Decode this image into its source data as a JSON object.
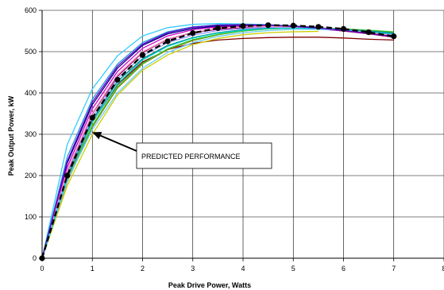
{
  "chart_data": {
    "type": "line",
    "xlabel": "Peak Drive Power, Watts",
    "ylabel": "Peak Output Power, kW",
    "xlim": [
      0,
      8
    ],
    "ylim": [
      0,
      600
    ],
    "xticks": [
      0,
      1,
      2,
      3,
      4,
      5,
      6,
      7,
      8
    ],
    "yticks": [
      0,
      100,
      200,
      300,
      400,
      500,
      600
    ],
    "grid": true,
    "legend": "none",
    "annotation": {
      "text": "PREDICTED PERFORMANCE",
      "points_to": [
        1,
        305
      ]
    },
    "predicted": {
      "color": "#000000",
      "style": "dashed-with-markers",
      "x": [
        0,
        0.5,
        1,
        1.5,
        2,
        2.5,
        3,
        3.5,
        4,
        4.5,
        5,
        5.5,
        6,
        6.5,
        7
      ],
      "y": [
        0,
        200,
        340,
        432,
        492,
        525,
        545,
        557,
        562,
        564,
        563,
        560,
        555,
        547,
        537
      ]
    },
    "series": [
      {
        "color": "#33ccff",
        "x": [
          0,
          0.5,
          1,
          1.5,
          2,
          2.5,
          3,
          3.5,
          4,
          4.5,
          5,
          5.5,
          6,
          6.5,
          7
        ],
        "y": [
          0,
          275,
          410,
          490,
          538,
          558,
          566,
          568,
          567,
          565,
          561,
          557,
          552,
          546,
          540
        ]
      },
      {
        "color": "#1f9dd9",
        "x": [
          0,
          0.5,
          1,
          1.5,
          2,
          2.5,
          3,
          3.5,
          4,
          4.5,
          5,
          5.5,
          6,
          6.5,
          7
        ],
        "y": [
          0,
          245,
          385,
          470,
          522,
          548,
          560,
          565,
          566,
          565,
          562,
          558,
          553,
          546,
          540
        ]
      },
      {
        "color": "#000080",
        "x": [
          0,
          0.5,
          1,
          1.5,
          2,
          2.5,
          3,
          3.5,
          4,
          4.5,
          5,
          5.5,
          6,
          6.5,
          7
        ],
        "y": [
          0,
          230,
          372,
          460,
          515,
          543,
          556,
          562,
          564,
          564,
          562,
          558,
          552,
          545,
          538
        ]
      },
      {
        "color": "#cc00cc",
        "x": [
          0,
          0.5,
          1,
          1.5,
          2,
          2.5,
          3,
          3.5,
          4,
          4.5,
          5,
          5.5,
          6,
          6.5,
          7
        ],
        "y": [
          0,
          220,
          362,
          452,
          508,
          538,
          553,
          560,
          562,
          562,
          560,
          556,
          550,
          544,
          537
        ]
      },
      {
        "color": "#990066",
        "x": [
          0,
          0.5,
          1,
          1.5,
          2,
          2.5,
          3,
          3.5,
          4,
          4.5,
          5,
          5.5,
          6,
          6.5,
          7
        ],
        "y": [
          0,
          210,
          350,
          440,
          498,
          530,
          546,
          554,
          558,
          559,
          558,
          555,
          550,
          543,
          535
        ]
      },
      {
        "color": "#800000",
        "x": [
          0,
          0.5,
          1,
          1.5,
          2,
          2.5,
          3,
          3.5,
          4,
          4.5,
          5,
          5.5,
          6,
          6.5,
          7
        ],
        "y": [
          0,
          195,
          330,
          420,
          475,
          505,
          520,
          528,
          532,
          534,
          535,
          535,
          533,
          530,
          528
        ]
      },
      {
        "color": "#808000",
        "x": [
          0,
          0.5,
          1,
          1.5,
          2,
          2.5,
          3,
          3.5,
          4,
          4.5,
          5,
          5.5,
          6,
          6.5,
          7
        ],
        "y": [
          0,
          185,
          318,
          412,
          470,
          505,
          527,
          541,
          550,
          555,
          557,
          557,
          555,
          551,
          546
        ]
      },
      {
        "color": "#cccc00",
        "x": [
          0,
          0.5,
          1,
          1.5,
          2,
          2.5,
          3,
          3.5,
          4,
          4.5,
          5,
          5.5
        ],
        "y": [
          0,
          175,
          300,
          395,
          455,
          492,
          517,
          532,
          541,
          546,
          548,
          549
        ]
      },
      {
        "color": "#33cc33",
        "x": [
          0,
          0.5,
          1,
          1.5,
          2,
          2.5,
          3,
          3.5,
          4,
          4.5,
          5,
          5.5,
          6,
          6.5,
          7
        ],
        "y": [
          0,
          190,
          322,
          415,
          472,
          507,
          529,
          542,
          550,
          555,
          557,
          557,
          555,
          552,
          548
        ]
      },
      {
        "color": "#008080",
        "x": [
          0,
          0.5,
          1,
          1.5,
          2,
          2.5,
          3,
          3.5,
          4,
          4.5,
          5,
          5.5,
          6,
          6.5,
          7
        ],
        "y": [
          0,
          200,
          335,
          428,
          483,
          515,
          534,
          546,
          553,
          557,
          558,
          557,
          554,
          550,
          545
        ]
      },
      {
        "color": "#66ccff",
        "x": [
          0,
          0.5,
          1,
          1.5,
          2,
          2.5,
          3,
          3.5,
          4,
          4.5,
          5,
          5.5,
          6,
          6.5,
          7
        ],
        "y": [
          0,
          188,
          312,
          400,
          460,
          498,
          522,
          537,
          546,
          551,
          554,
          554,
          552,
          548,
          543
        ]
      },
      {
        "color": "#9999ff",
        "x": [
          0,
          0.5,
          1,
          1.5,
          2,
          2.5,
          3,
          3.5,
          4,
          4.5,
          5,
          5.5,
          6,
          6.5,
          7
        ],
        "y": [
          0,
          205,
          342,
          435,
          490,
          522,
          540,
          551,
          556,
          559,
          559,
          557,
          553,
          548,
          542
        ]
      },
      {
        "color": "#ff99cc",
        "x": [
          0,
          0.5,
          1,
          1.5,
          2,
          2.5,
          3,
          3.5,
          4,
          4.5,
          5,
          5.5,
          6,
          6.5,
          7
        ],
        "y": [
          0,
          212,
          352,
          444,
          500,
          531,
          547,
          556,
          560,
          561,
          560,
          557,
          552,
          546,
          539
        ]
      },
      {
        "color": "#00cccc",
        "x": [
          0,
          0.5,
          1,
          1.5,
          2,
          2.5,
          3,
          3.5,
          4,
          4.5,
          5,
          5.5,
          6,
          6.5,
          7
        ],
        "y": [
          0,
          198,
          330,
          422,
          480,
          513,
          533,
          545,
          552,
          556,
          557,
          556,
          553,
          548,
          543
        ]
      },
      {
        "color": "#6600cc",
        "x": [
          0,
          0.5,
          1,
          1.5,
          2,
          2.5,
          3,
          3.5,
          4,
          4.5,
          5,
          5.5,
          6,
          6.5,
          7
        ],
        "y": [
          0,
          235,
          378,
          465,
          518,
          546,
          559,
          564,
          565,
          564,
          561,
          557,
          551,
          544,
          537
        ]
      }
    ]
  }
}
